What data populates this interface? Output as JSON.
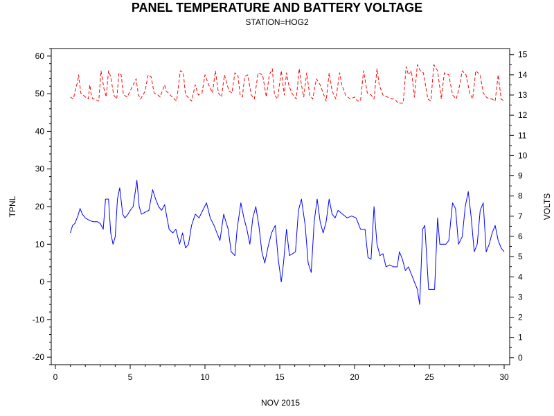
{
  "chart_data": {
    "type": "line",
    "title": "PANEL TEMPERATURE AND BATTERY VOLTAGE",
    "subtitle": "STATION=HOG2",
    "xlabel": "NOV 2015",
    "ylabel_left": "TPNL",
    "ylabel_right": "VOLTS",
    "xlim": [
      0,
      30
    ],
    "ylim_left": [
      -22,
      62
    ],
    "ylim_right": [
      -0.35,
      15.3
    ],
    "x_ticks": [
      0,
      5,
      10,
      15,
      20,
      25,
      30
    ],
    "y_left_ticks": [
      -20,
      -10,
      0,
      10,
      20,
      30,
      40,
      50,
      60
    ],
    "y_right_ticks": [
      0,
      1,
      2,
      3,
      4,
      5,
      6,
      7,
      8,
      9,
      10,
      11,
      12,
      13,
      14,
      15
    ],
    "grid": false,
    "series": [
      {
        "axis": "left",
        "color": "#0000ff",
        "line_style": "solid",
        "x": [
          1.0,
          1.15,
          1.3,
          1.5,
          1.65,
          1.8,
          2.0,
          2.2,
          2.5,
          2.8,
          3.0,
          3.2,
          3.35,
          3.55,
          3.7,
          3.85,
          4.0,
          4.15,
          4.3,
          4.5,
          4.65,
          4.85,
          5.0,
          5.2,
          5.45,
          5.6,
          5.75,
          6.0,
          6.25,
          6.5,
          6.7,
          6.9,
          7.1,
          7.3,
          7.6,
          7.85,
          8.05,
          8.3,
          8.5,
          8.7,
          8.9,
          9.1,
          9.35,
          9.6,
          9.85,
          10.1,
          10.35,
          10.6,
          10.8,
          11.0,
          11.25,
          11.55,
          11.75,
          12.0,
          12.15,
          12.4,
          12.6,
          12.8,
          13.0,
          13.2,
          13.4,
          13.6,
          13.8,
          14.0,
          14.2,
          14.45,
          14.7,
          14.9,
          15.1,
          15.25,
          15.45,
          15.65,
          15.85,
          16.05,
          16.25,
          16.45,
          16.7,
          16.9,
          17.1,
          17.3,
          17.5,
          17.7,
          17.9,
          18.1,
          18.3,
          18.5,
          18.7,
          18.9,
          19.2,
          19.5,
          19.8,
          20.1,
          20.4,
          20.7,
          20.9,
          21.1,
          21.3,
          21.5,
          21.7,
          21.9,
          22.1,
          22.35,
          22.6,
          22.85,
          23.0,
          23.2,
          23.4,
          23.6,
          23.8,
          24.0,
          24.2,
          24.35,
          24.55,
          24.7,
          24.95,
          25.15,
          25.35,
          25.55,
          25.7,
          25.9,
          26.1,
          26.3,
          26.55,
          26.75,
          26.95,
          27.2,
          27.4,
          27.6,
          27.8,
          28.0,
          28.2,
          28.4,
          28.6,
          28.8,
          29.0,
          29.2,
          29.4,
          29.6,
          29.8,
          30.0
        ],
        "values": [
          13,
          15,
          15.5,
          17.5,
          19.5,
          18,
          17,
          16.5,
          16,
          16,
          15.5,
          14,
          22,
          22,
          13,
          10,
          12,
          22,
          25,
          18,
          17,
          18,
          19,
          20,
          27,
          20,
          18,
          18.5,
          19,
          24.5,
          22,
          20,
          19,
          20.5,
          14,
          13,
          14,
          10,
          13,
          9,
          10,
          15,
          18,
          17,
          19,
          21,
          17,
          15,
          13,
          11,
          18,
          14,
          8,
          7,
          14,
          21,
          17,
          14,
          10,
          17,
          20,
          15,
          8,
          5,
          9,
          13,
          15,
          6,
          0,
          5,
          14,
          7,
          7.5,
          8,
          19,
          22,
          15,
          5,
          2.5,
          16,
          22,
          16,
          13,
          16,
          22,
          18,
          17,
          19,
          18,
          17,
          17.5,
          17,
          14,
          14,
          6.5,
          6,
          20,
          10,
          7,
          7.5,
          4,
          4.5,
          4,
          4,
          8,
          6,
          3,
          4,
          2,
          0,
          -2,
          -6,
          14,
          15,
          -2,
          -2,
          -2,
          17,
          10,
          10,
          10,
          11,
          21,
          19.5,
          10,
          12,
          20,
          24,
          17,
          8,
          10,
          19,
          21,
          8,
          10,
          13,
          15,
          11,
          9,
          8
        ],
        "label": "TPNL"
      },
      {
        "axis": "right",
        "color": "#ff0000",
        "line_style": "dashed",
        "x": [
          1.0,
          1.2,
          1.35,
          1.5,
          1.55,
          1.7,
          2.0,
          2.2,
          2.3,
          2.4,
          2.5,
          2.6,
          2.9,
          3.05,
          3.25,
          3.4,
          3.55,
          3.7,
          3.9,
          4.1,
          4.25,
          4.4,
          4.55,
          4.8,
          5.2,
          5.4,
          5.55,
          5.7,
          6.0,
          6.2,
          6.4,
          6.6,
          6.85,
          7.0,
          7.3,
          7.4,
          7.55,
          7.8,
          8.1,
          8.35,
          8.55,
          8.7,
          8.85,
          9.1,
          9.35,
          9.55,
          9.8,
          10.0,
          10.25,
          10.5,
          10.7,
          10.9,
          11.1,
          11.3,
          11.6,
          11.8,
          12.0,
          12.2,
          12.35,
          12.5,
          12.65,
          12.85,
          13.1,
          13.3,
          13.55,
          13.85,
          14.1,
          14.3,
          14.5,
          14.65,
          14.85,
          15.1,
          15.3,
          15.45,
          15.6,
          15.8,
          16.1,
          16.3,
          16.45,
          16.6,
          16.8,
          17.0,
          17.2,
          17.45,
          17.7,
          17.95,
          18.1,
          18.3,
          18.5,
          18.75,
          19.0,
          19.15,
          19.4,
          19.7,
          20.0,
          20.2,
          20.4,
          20.6,
          20.85,
          21.1,
          21.3,
          21.5,
          21.65,
          21.9,
          22.2,
          22.5,
          22.7,
          22.9,
          23.1,
          23.25,
          23.45,
          23.6,
          23.8,
          24.0,
          24.2,
          24.4,
          24.6,
          24.9,
          25.1,
          25.3,
          25.55,
          25.8,
          26.0,
          26.3,
          26.55,
          26.8,
          27.0,
          27.2,
          27.45,
          27.7,
          27.9,
          28.1,
          28.4,
          28.6,
          28.8,
          29.0,
          29.2,
          29.4,
          29.6,
          29.8,
          30.0
        ],
        "values": [
          12.9,
          12.8,
          13.3,
          13.7,
          14.0,
          13.1,
          12.9,
          12.8,
          13.5,
          13.0,
          12.8,
          12.8,
          12.7,
          14.2,
          13.3,
          12.9,
          14.2,
          13.9,
          13.0,
          12.8,
          14.1,
          14.0,
          13.0,
          12.9,
          13.5,
          13.8,
          13.0,
          12.8,
          13.2,
          14.0,
          13.9,
          13.1,
          13.0,
          12.9,
          13.5,
          13.2,
          13.1,
          12.9,
          12.7,
          14.2,
          14.1,
          13.0,
          12.9,
          12.7,
          13.5,
          13.0,
          13.1,
          14.0,
          13.5,
          13.1,
          14.2,
          13.1,
          12.9,
          14.0,
          13.2,
          13.1,
          14.1,
          14.0,
          13.0,
          12.9,
          13.9,
          14.0,
          13.0,
          12.8,
          14.1,
          14.0,
          12.9,
          14.0,
          14.3,
          13.0,
          12.8,
          14.2,
          13.0,
          14.1,
          13.5,
          13.1,
          12.8,
          14.3,
          13.5,
          12.9,
          14.1,
          13.0,
          12.8,
          13.8,
          13.5,
          13.0,
          12.7,
          14.1,
          13.2,
          12.8,
          14.1,
          13.5,
          13.0,
          12.8,
          12.9,
          12.7,
          12.7,
          14.2,
          13.1,
          13.0,
          12.8,
          14.3,
          13.5,
          13.0,
          12.9,
          12.8,
          12.8,
          12.6,
          12.6,
          12.6,
          14.4,
          14.0,
          14.2,
          12.9,
          14.5,
          14.2,
          14.1,
          12.8,
          12.7,
          14.5,
          14.2,
          12.8,
          14.1,
          14.0,
          13.0,
          12.8,
          13.4,
          14.2,
          14.0,
          13.1,
          12.8,
          14.2,
          14.0,
          13.1,
          12.9,
          12.8,
          12.8,
          12.7,
          14.0,
          12.8,
          12.7
        ]
      }
    ]
  }
}
